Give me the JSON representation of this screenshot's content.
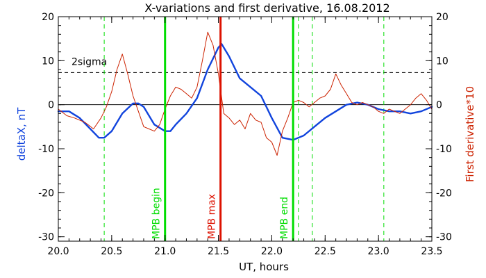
{
  "chart_data": {
    "type": "line",
    "title": "X-variations and first derivative, 16.08.2012",
    "xlabel": "UT, hours",
    "ylabel_left": "deltaX, nT",
    "ylabel_right": "First derivative*10",
    "xlim": [
      20.0,
      23.5
    ],
    "ylim": [
      -31,
      20
    ],
    "x_ticks": [
      "20.0",
      "20.5",
      "21.0",
      "21.5",
      "22.0",
      "22.5",
      "23.0",
      "23.5"
    ],
    "y_ticks_left": [
      "20",
      "10",
      "0",
      "-10",
      "-20",
      "-30"
    ],
    "y_ticks_right": [
      "20",
      "10",
      "0",
      "-10",
      "-20",
      "-30"
    ],
    "threshold": {
      "label": "2sigma",
      "y": 7.3,
      "color": "#000000"
    },
    "zero_line": {
      "y": 0,
      "color": "#000000"
    },
    "dashed_verticals": {
      "x": [
        20.43,
        21.0,
        22.25,
        22.38,
        23.05
      ],
      "color": "#00dd00"
    },
    "markers": [
      {
        "label": "MPB begin",
        "x": 21.0,
        "color": "#00dd00"
      },
      {
        "label": "MPB max",
        "x": 21.52,
        "color": "#dd1100"
      },
      {
        "label": "MPB end",
        "x": 22.2,
        "color": "#00dd00"
      }
    ],
    "series": [
      {
        "name": "deltaX",
        "color": "#1144dd",
        "axis": "left",
        "x": [
          20.0,
          20.1,
          20.2,
          20.3,
          20.38,
          20.43,
          20.5,
          20.6,
          20.7,
          20.75,
          20.8,
          20.9,
          21.0,
          21.05,
          21.1,
          21.2,
          21.3,
          21.4,
          21.5,
          21.53,
          21.6,
          21.7,
          21.8,
          21.9,
          22.0,
          22.1,
          22.2,
          22.3,
          22.4,
          22.5,
          22.6,
          22.7,
          22.8,
          22.9,
          23.0,
          23.1,
          23.2,
          23.3,
          23.4,
          23.5
        ],
        "values": [
          -1.5,
          -1.5,
          -3.0,
          -5.5,
          -7.5,
          -7.5,
          -6.0,
          -2.0,
          0.3,
          0.3,
          -0.5,
          -4.5,
          -6.0,
          -6.0,
          -4.5,
          -2.0,
          1.5,
          8.0,
          13.0,
          13.8,
          11.0,
          6.0,
          4.0,
          2.0,
          -3.0,
          -7.5,
          -8.0,
          -7.0,
          -5.0,
          -3.0,
          -1.5,
          0.0,
          0.5,
          0.0,
          -1.0,
          -1.5,
          -1.5,
          -2.0,
          -1.5,
          -0.5
        ]
      },
      {
        "name": "First derivative*10",
        "color": "#cc2200",
        "axis": "right",
        "x": [
          20.0,
          20.08,
          20.15,
          20.25,
          20.33,
          20.4,
          20.45,
          20.5,
          20.55,
          20.6,
          20.65,
          20.7,
          20.75,
          20.8,
          20.85,
          20.9,
          20.95,
          21.0,
          21.05,
          21.1,
          21.15,
          21.2,
          21.25,
          21.3,
          21.35,
          21.4,
          21.45,
          21.5,
          21.55,
          21.6,
          21.65,
          21.7,
          21.75,
          21.8,
          21.85,
          21.9,
          21.95,
          22.0,
          22.05,
          22.1,
          22.15,
          22.2,
          22.25,
          22.3,
          22.35,
          22.4,
          22.45,
          22.5,
          22.55,
          22.6,
          22.65,
          22.7,
          22.75,
          22.8,
          22.85,
          22.9,
          22.95,
          23.0,
          23.05,
          23.1,
          23.15,
          23.2,
          23.25,
          23.3,
          23.35,
          23.4,
          23.45,
          23.5
        ],
        "values": [
          -1.0,
          -2.5,
          -3.0,
          -4.0,
          -5.5,
          -3.0,
          -0.5,
          3.0,
          8.0,
          11.5,
          7.0,
          2.0,
          -1.5,
          -5.0,
          -5.5,
          -6.0,
          -4.5,
          -1.0,
          2.0,
          4.0,
          3.5,
          2.5,
          1.5,
          4.0,
          10.0,
          16.5,
          13.5,
          7.0,
          -2.0,
          -3.0,
          -4.5,
          -3.5,
          -5.5,
          -2.0,
          -3.5,
          -4.0,
          -7.5,
          -8.5,
          -11.5,
          -6.0,
          -3.0,
          0.5,
          1.0,
          0.5,
          -0.5,
          0.5,
          1.5,
          2.0,
          3.5,
          7.0,
          4.5,
          2.5,
          0.5,
          0.0,
          0.5,
          0.0,
          -0.5,
          -1.5,
          -2.0,
          -1.0,
          -1.5,
          -2.0,
          -1.0,
          0.0,
          1.5,
          2.5,
          1.0,
          -1.0
        ]
      }
    ]
  }
}
